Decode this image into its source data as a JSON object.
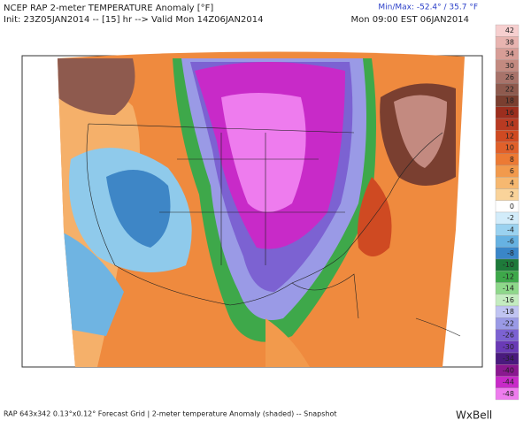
{
  "header": {
    "title": "NCEP RAP 2-meter TEMPERATURE Anomaly [°F]",
    "minmax": "Min/Max: -52.4° / 35.7 °F",
    "init": "Init: 23Z05JAN2014 -- [15] hr --> Valid Mon 14Z06JAN2014",
    "valid_local": "Mon 09:00 EST 06JAN2014"
  },
  "colorbar": {
    "levels": [
      42,
      38,
      34,
      30,
      26,
      22,
      18,
      16,
      14,
      12,
      10,
      8,
      6,
      4,
      2,
      0,
      -2,
      -4,
      -6,
      -8,
      -10,
      -12,
      -14,
      -16,
      -18,
      -22,
      -26,
      -30,
      -34,
      -40,
      -44,
      -48
    ],
    "colors": [
      "#f6cfcf",
      "#e8b4b0",
      "#d79d96",
      "#c38a80",
      "#a8736a",
      "#8e5a4e",
      "#7a3f30",
      "#9c2e1e",
      "#b83a22",
      "#cf4a22",
      "#e0602a",
      "#ec7a34",
      "#f29a4c",
      "#f6b870",
      "#f9d39a",
      "#ffffff",
      "#d2ecfa",
      "#9ad2f0",
      "#66b2e2",
      "#3a86c8",
      "#1e7a3a",
      "#3ea84a",
      "#8ed88a",
      "#c4ecc0",
      "#c0c4f2",
      "#9a9ae6",
      "#7c62d2",
      "#6a3ab6",
      "#4a1a7e",
      "#8a1890",
      "#c82ac8",
      "#ee7cee"
    ]
  },
  "footer": {
    "description": "RAP 643x342 0.13°x0.12° Forecast Grid | 2-meter temperature Anomaly (shaded) -- Snapshot",
    "logo": "WxBell"
  }
}
